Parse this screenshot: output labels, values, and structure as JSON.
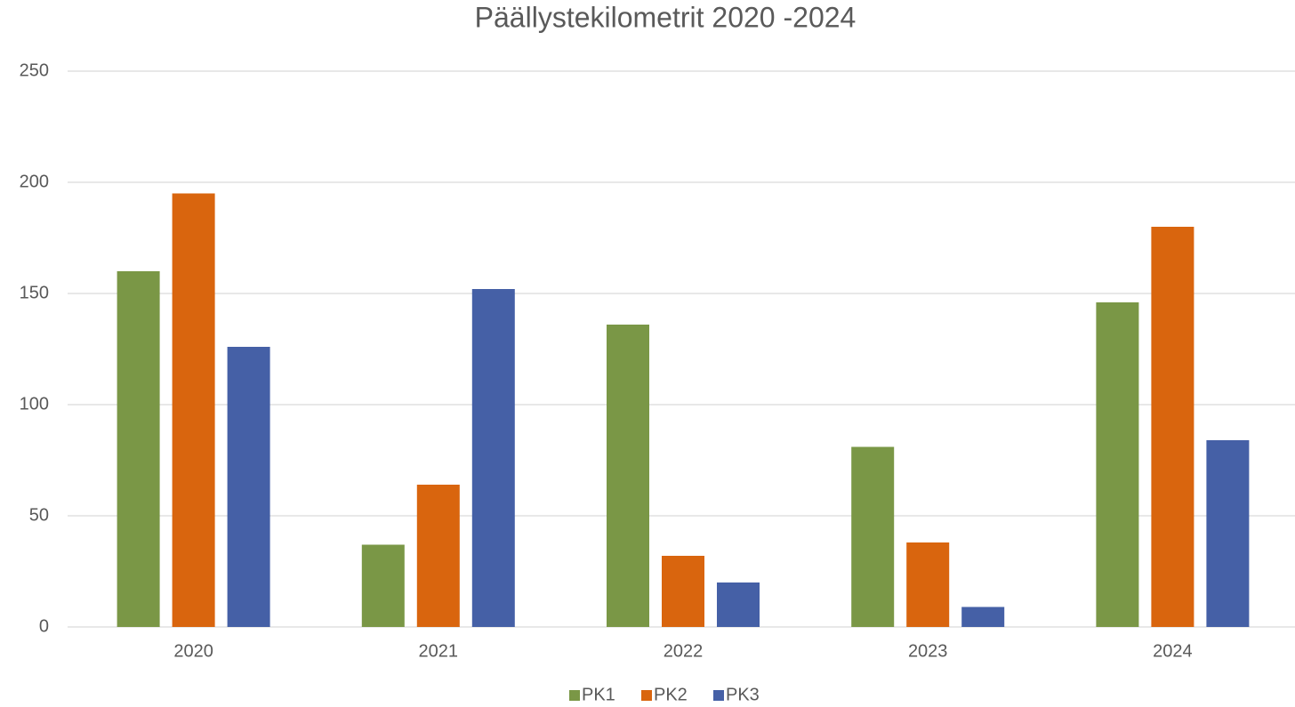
{
  "chart_data": {
    "type": "bar",
    "title": "Päällystekilometrit 2020 -2024",
    "categories": [
      "2020",
      "2021",
      "2022",
      "2023",
      "2024"
    ],
    "series": [
      {
        "name": "PK1",
        "color": "#7a9746",
        "values": [
          160,
          37,
          136,
          81,
          146
        ]
      },
      {
        "name": "PK2",
        "color": "#d9650e",
        "values": [
          195,
          64,
          32,
          38,
          180
        ]
      },
      {
        "name": "PK3",
        "color": "#4560a6",
        "values": [
          126,
          152,
          20,
          9,
          84
        ]
      }
    ],
    "ylim": [
      0,
      250
    ],
    "yticks": [
      0,
      50,
      100,
      150,
      200,
      250
    ],
    "grid": true,
    "legend": "bottom"
  }
}
